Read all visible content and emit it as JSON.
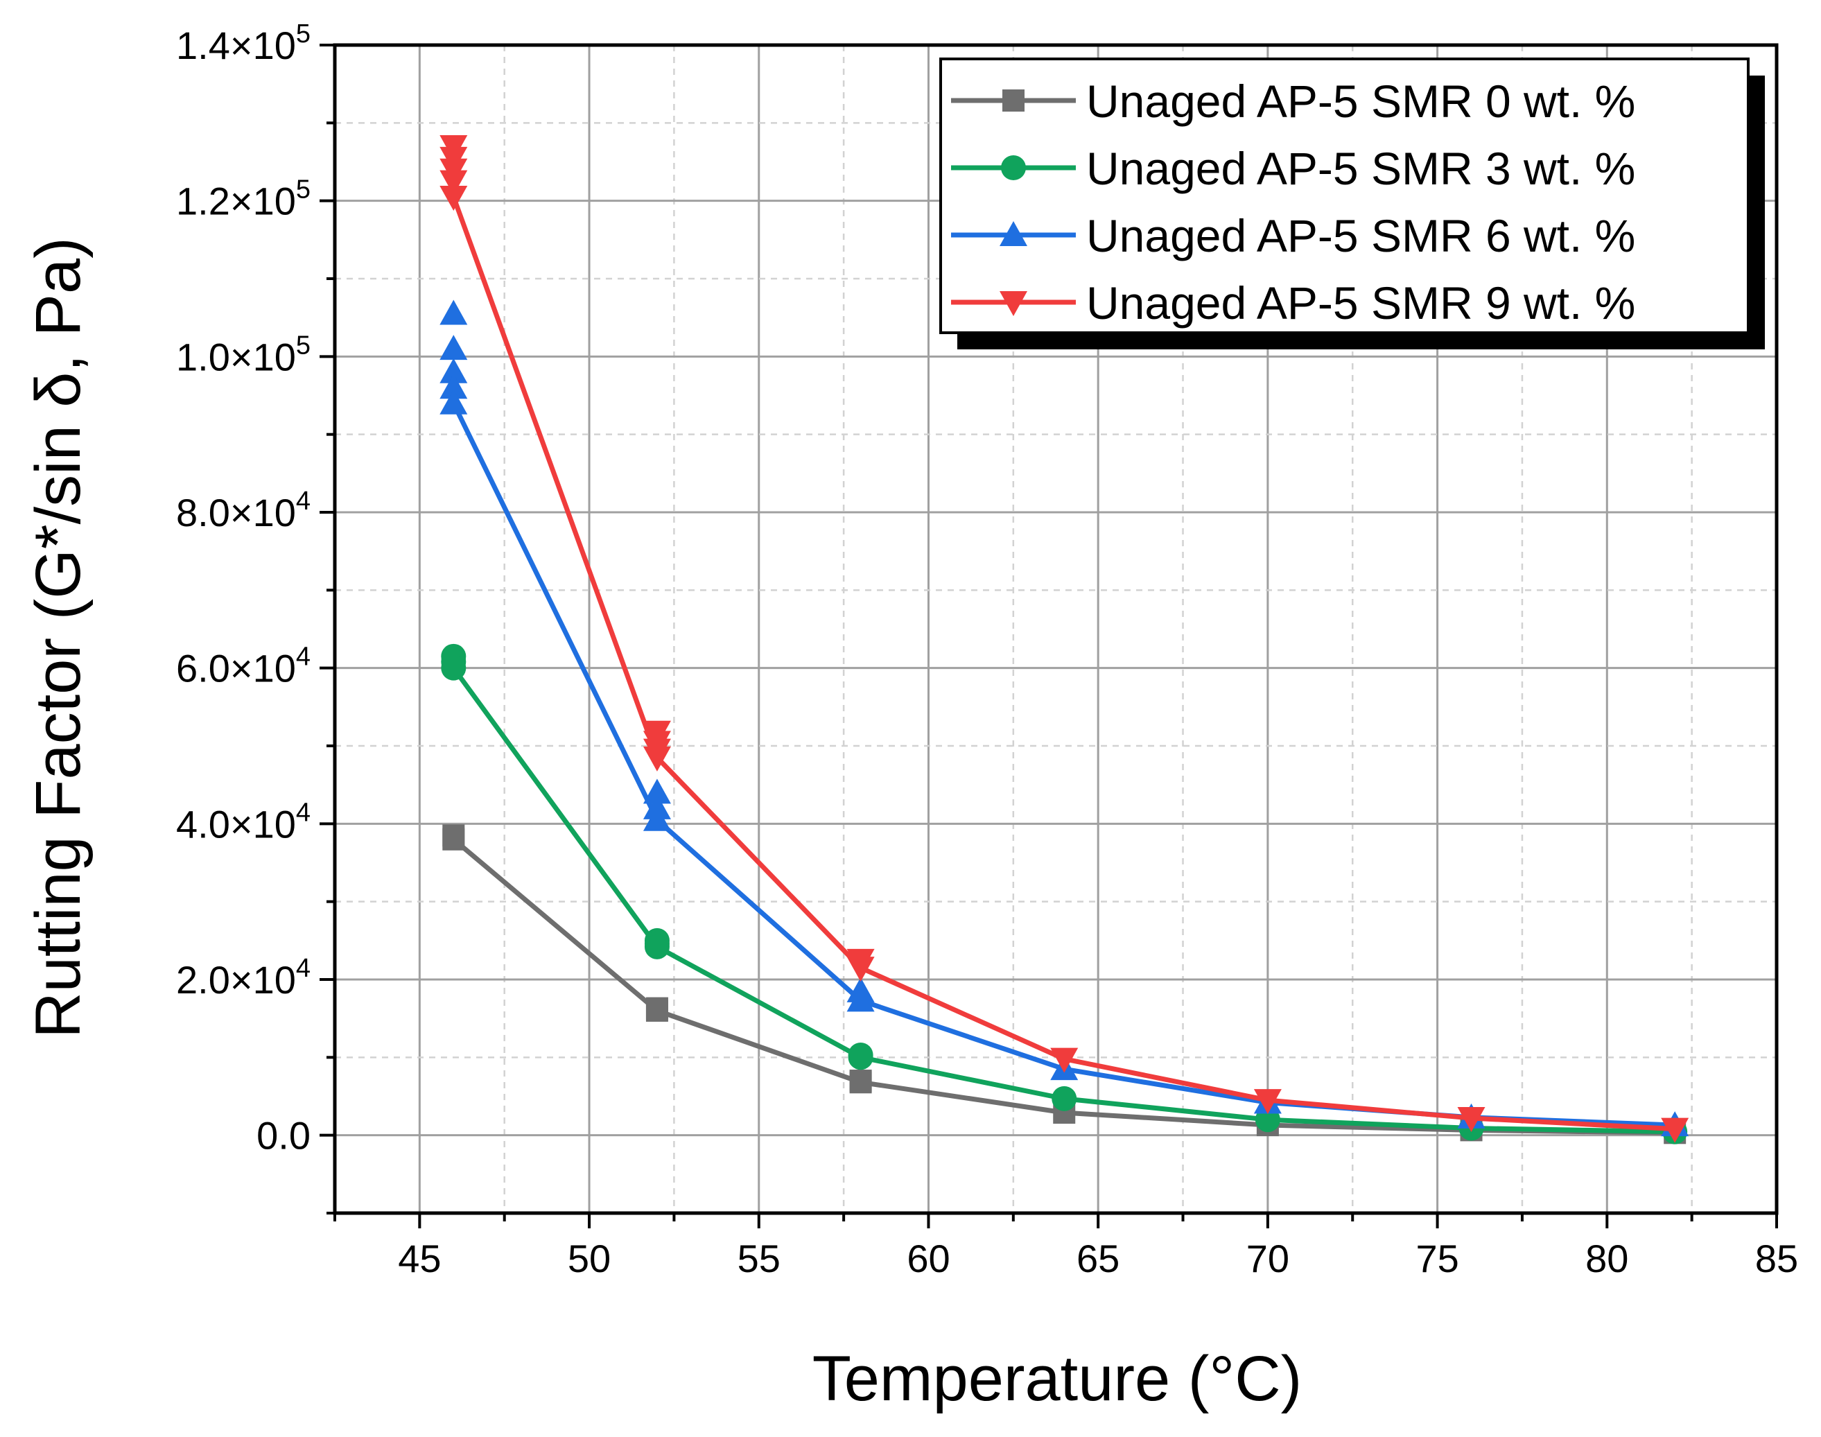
{
  "chart_data": {
    "type": "line",
    "title": "",
    "xlabel": "Temperature (°C)",
    "ylabel": "Rutting Factor (G*/sin δ, Pa)",
    "xlim": [
      42.5,
      85
    ],
    "ylim": [
      -10000,
      140000
    ],
    "xticks": [
      45,
      50,
      55,
      60,
      65,
      70,
      75,
      80,
      85
    ],
    "xtick_labels": [
      "45",
      "50",
      "55",
      "60",
      "65",
      "70",
      "75",
      "80",
      "85"
    ],
    "yticks": [
      0,
      20000,
      40000,
      60000,
      80000,
      100000,
      120000,
      140000
    ],
    "ytick_labels": [
      {
        "mantissa": "0.0",
        "exp": ""
      },
      {
        "mantissa": "2.0×10",
        "exp": "4"
      },
      {
        "mantissa": "4.0×10",
        "exp": "4"
      },
      {
        "mantissa": "6.0×10",
        "exp": "4"
      },
      {
        "mantissa": "8.0×10",
        "exp": "4"
      },
      {
        "mantissa": "1.0×10",
        "exp": "5"
      },
      {
        "mantissa": "1.2×10",
        "exp": "5"
      },
      {
        "mantissa": "1.4×10",
        "exp": "5"
      }
    ],
    "grid": true,
    "legend_position": "top-right",
    "x": [
      46,
      52,
      58,
      64,
      70,
      76,
      82
    ],
    "series": [
      {
        "name": "Unaged AP-5 SMR 0 wt. %",
        "color": "#6e6e6e",
        "marker": "square",
        "values": [
          38000,
          16000,
          6800,
          2900,
          1300,
          650,
          300
        ],
        "extra_points": [
          [
            46,
            38500
          ],
          [
            52,
            16300
          ],
          [
            58,
            7000
          ]
        ]
      },
      {
        "name": "Unaged AP-5 SMR 3 wt. %",
        "color": "#10a35c",
        "marker": "circle",
        "values": [
          60000,
          24200,
          10000,
          4700,
          2000,
          900,
          450
        ],
        "extra_points": [
          [
            46,
            61500
          ],
          [
            46,
            60800
          ],
          [
            52,
            25000
          ],
          [
            52,
            24600
          ],
          [
            58,
            10300
          ]
        ]
      },
      {
        "name": "Unaged AP-5 SMR 6 wt. %",
        "color": "#1f6fe0",
        "marker": "triangle-up",
        "values": [
          94000,
          40500,
          17300,
          8500,
          4200,
          2300,
          1300
        ],
        "extra_points": [
          [
            46,
            105500
          ],
          [
            46,
            101000
          ],
          [
            46,
            98000
          ],
          [
            46,
            96000
          ],
          [
            52,
            44000
          ],
          [
            52,
            42000
          ],
          [
            58,
            18500
          ]
        ]
      },
      {
        "name": "Unaged AP-5 SMR 9 wt. %",
        "color": "#f03c3c",
        "marker": "triangle-down",
        "values": [
          120500,
          48500,
          21500,
          9800,
          4500,
          2200,
          800
        ],
        "extra_points": [
          [
            46,
            127000
          ],
          [
            46,
            125500
          ],
          [
            46,
            124000
          ],
          [
            46,
            122500
          ],
          [
            52,
            51800
          ],
          [
            52,
            50500
          ],
          [
            52,
            49500
          ],
          [
            58,
            22500
          ]
        ]
      }
    ]
  }
}
